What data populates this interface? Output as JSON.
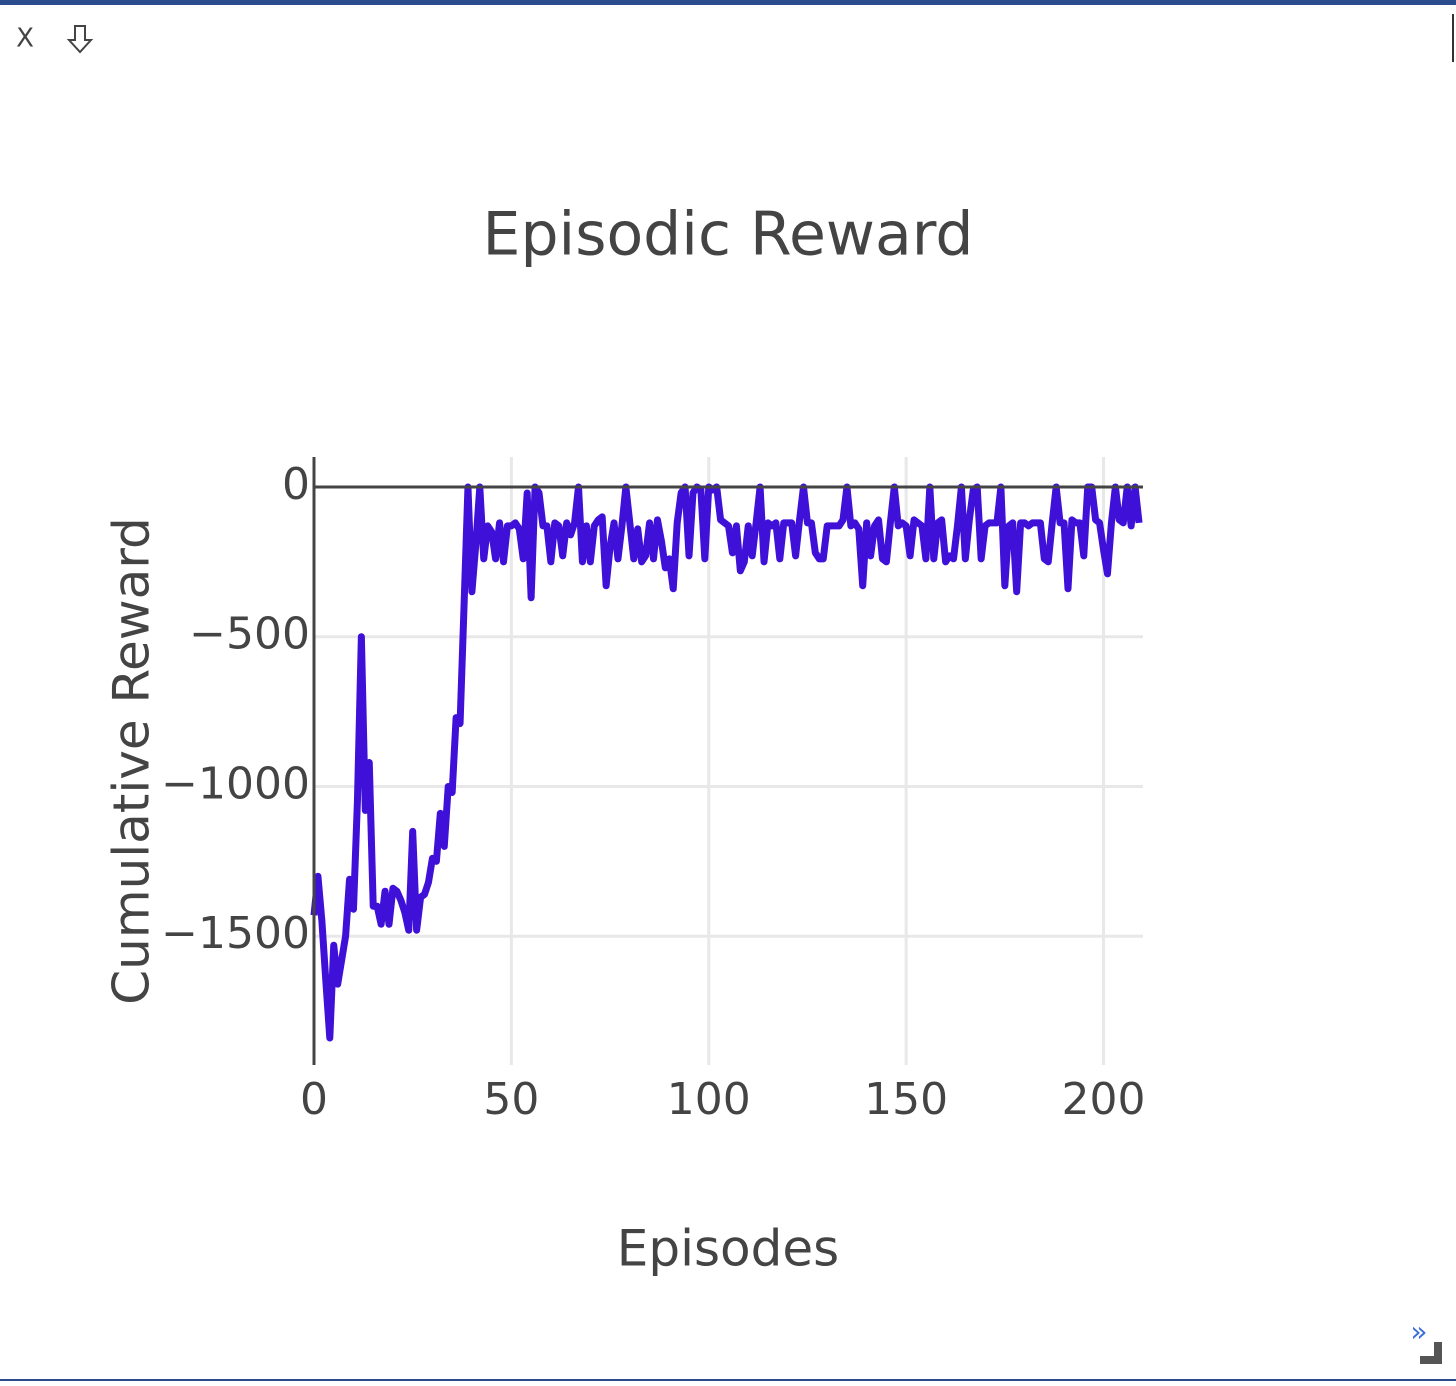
{
  "toolbar": {
    "close": "X",
    "expand": "»"
  },
  "chart_data": {
    "type": "line",
    "title": "Episodic Reward",
    "x_label": "Episodes",
    "y_label": "Cumulative Reward",
    "color": "#3f10d8",
    "grid": true,
    "zeroline": true,
    "xlim": [
      0,
      210
    ],
    "ylim": [
      -1930,
      100
    ],
    "xticks": [
      0,
      50,
      100,
      150,
      200
    ],
    "yticks": [
      {
        "value": -1500,
        "label": "−1500"
      },
      {
        "value": -1000,
        "label": "−1000"
      },
      {
        "value": -500,
        "label": "−500"
      },
      0
    ],
    "x": [
      0,
      1,
      2,
      3,
      4,
      5,
      6,
      7,
      8,
      9,
      10,
      11,
      12,
      13,
      14,
      15,
      16,
      17,
      18,
      19,
      20,
      21,
      22,
      23,
      24,
      25,
      26,
      27,
      28,
      29,
      30,
      31,
      32,
      33,
      34,
      35,
      36,
      37,
      38,
      39,
      40,
      41,
      42,
      43,
      44,
      45,
      46,
      47,
      48,
      49,
      50,
      51,
      52,
      53,
      54,
      55,
      56,
      57,
      58,
      59,
      60,
      61,
      62,
      63,
      64,
      65,
      66,
      67,
      68,
      69,
      70,
      71,
      72,
      73,
      74,
      75,
      76,
      77,
      78,
      79,
      80,
      81,
      82,
      83,
      84,
      85,
      86,
      87,
      88,
      89,
      90,
      91,
      92,
      93,
      94,
      95,
      96,
      97,
      98,
      99,
      100,
      101,
      102,
      103,
      104,
      105,
      106,
      107,
      108,
      109,
      110,
      111,
      112,
      113,
      114,
      115,
      116,
      117,
      118,
      119,
      120,
      121,
      122,
      123,
      124,
      125,
      126,
      127,
      128,
      129,
      130,
      131,
      132,
      133,
      134,
      135,
      136,
      137,
      138,
      139,
      140,
      141,
      142,
      143,
      144,
      145,
      146,
      147,
      148,
      149,
      150,
      151,
      152,
      153,
      154,
      155,
      156,
      157,
      158,
      159,
      160,
      161,
      162,
      163,
      164,
      165,
      166,
      167,
      168,
      169,
      170,
      171,
      172,
      173,
      174,
      175,
      176,
      177,
      178,
      179,
      180,
      181,
      182,
      183,
      184,
      185,
      186,
      187,
      188,
      189,
      190,
      191,
      192,
      193,
      194,
      195,
      196,
      197,
      198,
      199,
      200,
      201,
      202,
      203,
      204,
      205,
      206,
      207,
      208,
      209
    ],
    "values": [
      -1430,
      -1300,
      -1450,
      -1650,
      -1840,
      -1530,
      -1660,
      -1580,
      -1500,
      -1310,
      -1410,
      -1050,
      -500,
      -1080,
      -920,
      -1400,
      -1400,
      -1460,
      -1350,
      -1460,
      -1340,
      -1350,
      -1380,
      -1420,
      -1480,
      -1150,
      -1480,
      -1370,
      -1360,
      -1320,
      -1240,
      -1250,
      -1090,
      -1200,
      -1000,
      -1020,
      -770,
      -790,
      -400,
      0,
      -350,
      -190,
      0,
      -240,
      -130,
      -150,
      -240,
      -120,
      -250,
      -130,
      -130,
      -120,
      -140,
      -240,
      -20,
      -370,
      0,
      -20,
      -130,
      -130,
      -250,
      -120,
      -130,
      -230,
      -120,
      -160,
      -120,
      0,
      -250,
      -130,
      -250,
      -130,
      -110,
      -100,
      -330,
      -200,
      -120,
      -240,
      -130,
      0,
      -120,
      -240,
      -140,
      -250,
      -230,
      -120,
      -240,
      -110,
      -180,
      -270,
      -240,
      -340,
      -120,
      -20,
      0,
      -230,
      -20,
      0,
      -10,
      -240,
      0,
      -10,
      0,
      -110,
      -120,
      -130,
      -220,
      -130,
      -280,
      -250,
      -130,
      -230,
      -120,
      0,
      -250,
      -120,
      -130,
      -120,
      -240,
      -120,
      -120,
      -120,
      -230,
      -110,
      0,
      -120,
      -120,
      -220,
      -240,
      -240,
      -130,
      -130,
      -130,
      -130,
      -110,
      0,
      -130,
      -120,
      -140,
      -330,
      -120,
      -230,
      -130,
      -110,
      -240,
      -250,
      -120,
      0,
      -130,
      -120,
      -130,
      -230,
      -110,
      -120,
      -130,
      -240,
      0,
      -240,
      -120,
      -110,
      -250,
      -230,
      -240,
      -130,
      0,
      -240,
      -110,
      -10,
      0,
      -240,
      -130,
      -120,
      -120,
      -120,
      0,
      -330,
      -130,
      -120,
      -350,
      -120,
      -120,
      -130,
      -120,
      -120,
      -120,
      -240,
      -250,
      -120,
      0,
      -120,
      -120,
      -340,
      -110,
      -120,
      -120,
      -230,
      0,
      0,
      -110,
      -120,
      -210,
      -290,
      -120,
      0,
      -110,
      -120,
      0,
      -130,
      0,
      -120
    ]
  }
}
